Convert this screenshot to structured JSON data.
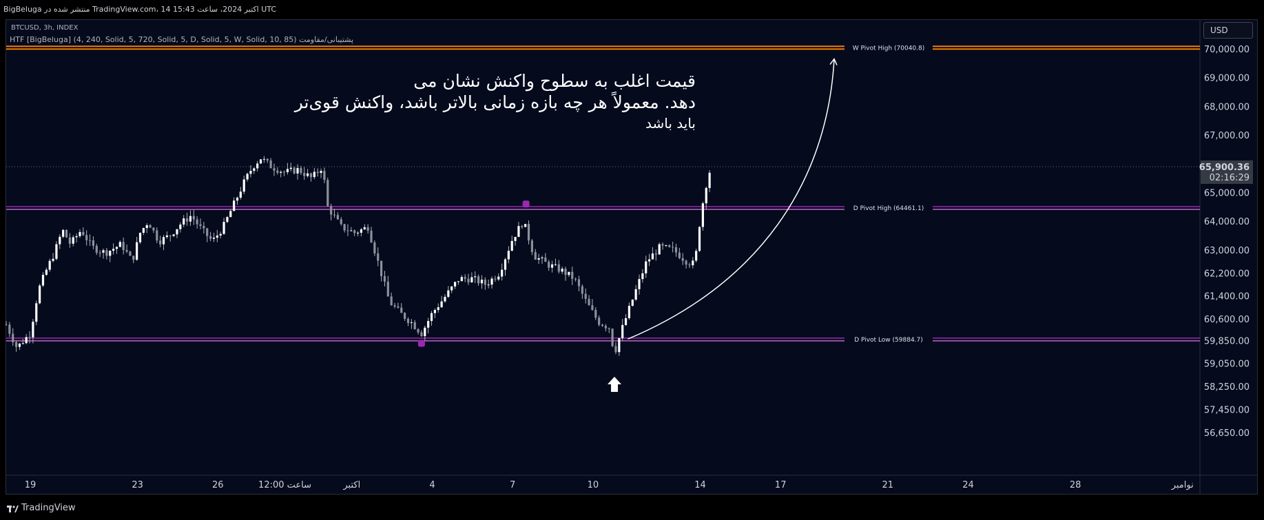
{
  "header": {
    "published": "BigBeluga منتشر شده در TradingView.com، 14 اکتبر 2024، ساعت 15:43 UTC"
  },
  "symbol_line": "BTCUSD, 3h, INDEX",
  "indicator_line": "HTF [BigBeluga] (4, 240, Solid, 5, 720, Solid, 5, D, Solid, 5, W, Solid, 10, 85) پشتیبانی/مقاومت",
  "currency_button": "USD",
  "annotation": {
    "lines": [
      "قیمت اغلب به سطوح واکنش نشان می",
      "دهد. معمولاً هر چه بازه زمانی بالاتر باشد، واکنش قوی‌تر",
      "باید باشد"
    ]
  },
  "footer": {
    "brand": "TradingView"
  },
  "colors": {
    "background": "#050a1d",
    "candle": "#b2b5be",
    "weekly_pivot": "#f57c00",
    "daily_pivot": "#9c27b0",
    "daily_pivot_line": "#ba68c8",
    "arrow": "#ffffff"
  },
  "chart_data": {
    "type": "candlestick",
    "symbol": "BTCUSD",
    "interval": "3h",
    "ylim": [
      56300,
      70800
    ],
    "y_ticks": [
      70000,
      69000,
      68000,
      67000,
      65000,
      64000,
      63000,
      62200,
      61400,
      60600,
      59850,
      59050,
      58250,
      57450,
      56650
    ],
    "y_tick_labels": [
      "70,000.00",
      "69,000.00",
      "68,000.00",
      "67,000.00",
      "65,000.00",
      "64,000.00",
      "63,000.00",
      "62,200.00",
      "61,400.00",
      "60,600.00",
      "59,850.00",
      "59,050.00",
      "58,250.00",
      "57,450.00",
      "56,650.00"
    ],
    "x_ticks": [
      {
        "label": "19",
        "day": 0
      },
      {
        "label": "23",
        "day": 4
      },
      {
        "label": "26",
        "day": 7
      },
      {
        "label": "12:00 ساعت",
        "day": 9.5
      },
      {
        "label": "اکتبر",
        "day": 12
      },
      {
        "label": "4",
        "day": 15
      },
      {
        "label": "7",
        "day": 18
      },
      {
        "label": "10",
        "day": 21
      },
      {
        "label": "14",
        "day": 25
      },
      {
        "label": "17",
        "day": 28
      },
      {
        "label": "21",
        "day": 32
      },
      {
        "label": "24",
        "day": 35
      },
      {
        "label": "28",
        "day": 39
      },
      {
        "label": "نوامبر",
        "day": 43
      }
    ],
    "last_price": {
      "value": 65900.36,
      "label": "65,900.36",
      "countdown": "02:16:29"
    },
    "pivots": [
      {
        "name": "W Pivot High",
        "label": "W Pivot High (70040.8)",
        "value": 70040.8,
        "kind": "weekly"
      },
      {
        "name": "D Pivot High",
        "label": "D Pivot High (64461.1)",
        "value": 64461.1,
        "kind": "daily"
      },
      {
        "name": "D Pivot Low",
        "label": "D Pivot Low (59884.7)",
        "value": 59884.7,
        "kind": "daily"
      }
    ],
    "pivot_markers": [
      {
        "day": 14.6,
        "value": 59750
      },
      {
        "day": 18.5,
        "value": 64600
      }
    ],
    "up_arrow": {
      "day": 21.8,
      "value": 58300
    },
    "curve_arrow": {
      "from": {
        "day": 22.3,
        "value": 59900
      },
      "to": {
        "day": 30.0,
        "value": 69650
      }
    },
    "price_path": [
      {
        "day": -0.9,
        "value": 60400
      },
      {
        "day": -0.5,
        "value": 59600
      },
      {
        "day": 0.0,
        "value": 60100
      },
      {
        "day": 0.3,
        "value": 61600
      },
      {
        "day": 0.6,
        "value": 62300
      },
      {
        "day": 0.9,
        "value": 62900
      },
      {
        "day": 1.2,
        "value": 63700
      },
      {
        "day": 1.5,
        "value": 63200
      },
      {
        "day": 1.9,
        "value": 63700
      },
      {
        "day": 2.3,
        "value": 63100
      },
      {
        "day": 2.8,
        "value": 62900
      },
      {
        "day": 3.4,
        "value": 63200
      },
      {
        "day": 3.8,
        "value": 62600
      },
      {
        "day": 4.1,
        "value": 63600
      },
      {
        "day": 4.4,
        "value": 64000
      },
      {
        "day": 4.8,
        "value": 63300
      },
      {
        "day": 5.2,
        "value": 63500
      },
      {
        "day": 5.6,
        "value": 63900
      },
      {
        "day": 6.0,
        "value": 64200
      },
      {
        "day": 6.4,
        "value": 63700
      },
      {
        "day": 6.8,
        "value": 63300
      },
      {
        "day": 7.2,
        "value": 63800
      },
      {
        "day": 7.6,
        "value": 64600
      },
      {
        "day": 8.0,
        "value": 65400
      },
      {
        "day": 8.3,
        "value": 65900
      },
      {
        "day": 8.6,
        "value": 66200
      },
      {
        "day": 9.0,
        "value": 65900
      },
      {
        "day": 9.5,
        "value": 65700
      },
      {
        "day": 10.0,
        "value": 65800
      },
      {
        "day": 10.5,
        "value": 65500
      },
      {
        "day": 10.9,
        "value": 65900
      },
      {
        "day": 11.1,
        "value": 64500
      },
      {
        "day": 11.6,
        "value": 63800
      },
      {
        "day": 12.1,
        "value": 63600
      },
      {
        "day": 12.6,
        "value": 63800
      },
      {
        "day": 13.0,
        "value": 62500
      },
      {
        "day": 13.4,
        "value": 61200
      },
      {
        "day": 13.8,
        "value": 60800
      },
      {
        "day": 14.2,
        "value": 60500
      },
      {
        "day": 14.6,
        "value": 60100
      },
      {
        "day": 15.0,
        "value": 60800
      },
      {
        "day": 15.5,
        "value": 61400
      },
      {
        "day": 16.0,
        "value": 62000
      },
      {
        "day": 16.5,
        "value": 62000
      },
      {
        "day": 17.0,
        "value": 61800
      },
      {
        "day": 17.5,
        "value": 62200
      },
      {
        "day": 18.0,
        "value": 63400
      },
      {
        "day": 18.4,
        "value": 64000
      },
      {
        "day": 18.8,
        "value": 62800
      },
      {
        "day": 19.3,
        "value": 62500
      },
      {
        "day": 19.8,
        "value": 62300
      },
      {
        "day": 20.3,
        "value": 62000
      },
      {
        "day": 20.8,
        "value": 61100
      },
      {
        "day": 21.2,
        "value": 60500
      },
      {
        "day": 21.6,
        "value": 60300
      },
      {
        "day": 21.8,
        "value": 59400
      },
      {
        "day": 22.1,
        "value": 60300
      },
      {
        "day": 22.6,
        "value": 61600
      },
      {
        "day": 23.0,
        "value": 62600
      },
      {
        "day": 23.5,
        "value": 63100
      },
      {
        "day": 24.0,
        "value": 63000
      },
      {
        "day": 24.5,
        "value": 62600
      },
      {
        "day": 24.8,
        "value": 62500
      },
      {
        "day": 25.0,
        "value": 64100
      },
      {
        "day": 25.2,
        "value": 65200
      },
      {
        "day": 25.4,
        "value": 65900
      }
    ]
  }
}
